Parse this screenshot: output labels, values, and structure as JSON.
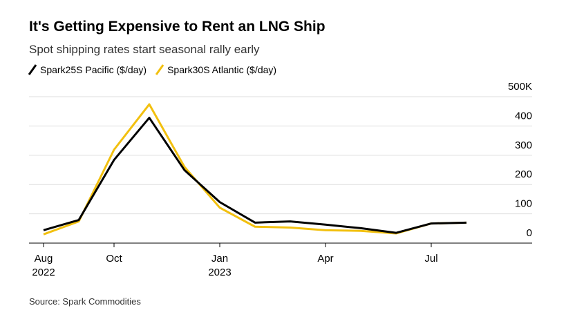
{
  "chart_data": {
    "type": "line",
    "title": "It's Getting Expensive to Rent an LNG Ship",
    "subtitle": "Spot shipping rates start seasonal rally early",
    "source": "Source: Spark Commodities",
    "x": [
      "2022-08",
      "2022-09",
      "2022-10",
      "2022-11",
      "2022-12",
      "2023-01",
      "2023-02",
      "2023-03",
      "2023-04",
      "2023-05",
      "2023-06",
      "2023-07",
      "2023-08"
    ],
    "series": [
      {
        "name": "Spark25S Pacific ($/day)",
        "color": "#000000",
        "values": [
          44,
          79,
          284,
          428,
          249,
          140,
          70,
          74,
          63,
          51,
          35,
          67,
          70
        ]
      },
      {
        "name": "Spark30S Atlantic ($/day)",
        "color": "#f2c00f",
        "values": [
          30,
          74,
          319,
          474,
          260,
          121,
          56,
          53,
          44,
          42,
          33,
          67,
          70
        ]
      }
    ],
    "ylim": [
      0,
      500
    ],
    "yticks": [
      0,
      100,
      200,
      300,
      400,
      {
        "value": 500,
        "label": "500K"
      }
    ],
    "xticks": [
      {
        "value": "2022-08",
        "label": "Aug 2022"
      },
      {
        "value": "2022-10",
        "label": "Oct"
      },
      {
        "value": "2023-01",
        "label": "Jan 2023"
      },
      {
        "value": "2023-04",
        "label": "Apr"
      },
      {
        "value": "2023-07",
        "label": "Jul"
      }
    ],
    "grid": true
  }
}
